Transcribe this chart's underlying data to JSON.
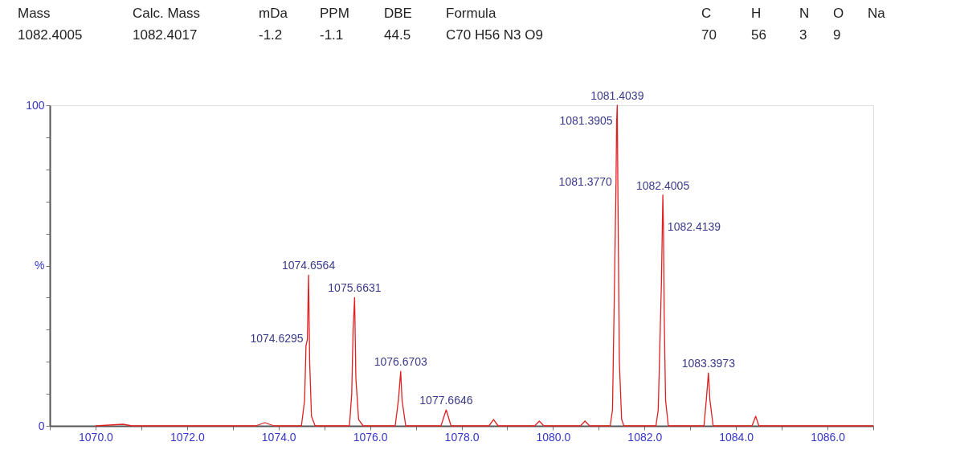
{
  "chart_data": {
    "type": "line",
    "x": [
      1070.0,
      1070.6,
      1070.8,
      1073.5,
      1073.7,
      1073.9,
      1074.5,
      1074.57,
      1074.6,
      1074.6295,
      1074.6564,
      1074.68,
      1074.72,
      1074.8,
      1075.55,
      1075.6,
      1075.63,
      1075.6631,
      1075.69,
      1075.75,
      1075.85,
      1076.55,
      1076.62,
      1076.6703,
      1076.7,
      1076.78,
      1077.55,
      1077.6646,
      1077.77,
      1078.6,
      1078.7,
      1078.8,
      1079.6,
      1079.7,
      1079.8,
      1080.6,
      1080.7,
      1080.8,
      1081.25,
      1081.3,
      1081.35,
      1081.377,
      1081.3905,
      1081.4039,
      1081.42,
      1081.45,
      1081.5,
      1081.55,
      1082.25,
      1082.3,
      1082.37,
      1082.4005,
      1082.4139,
      1082.43,
      1082.46,
      1082.52,
      1083.3,
      1083.35,
      1083.3973,
      1083.43,
      1083.5,
      1084.35,
      1084.43,
      1084.5,
      1087.0
    ],
    "series": [
      {
        "color": "#e02020",
        "values": [
          0,
          0.5,
          0,
          0,
          1,
          0,
          0,
          8,
          25,
          27,
          47,
          20,
          3,
          0,
          0,
          10,
          30,
          40,
          15,
          2,
          0,
          0,
          8,
          17,
          8,
          0,
          0,
          5,
          0,
          0,
          2,
          0,
          0,
          1.5,
          0,
          0,
          1.5,
          0,
          0,
          5,
          50,
          76,
          95,
          100,
          70,
          20,
          2,
          0,
          0,
          5,
          45,
          72,
          62,
          35,
          8,
          0,
          0,
          8,
          16.5,
          8,
          0,
          0,
          3,
          0,
          0
        ]
      }
    ],
    "xlim": [
      1069,
      1087
    ],
    "xticks": [
      {
        "value": 1069,
        "label": null
      },
      {
        "value": 1070,
        "label": "1070.0"
      },
      {
        "value": 1071,
        "label": null
      },
      {
        "value": 1072,
        "label": "1072.0"
      },
      {
        "value": 1073,
        "label": null
      },
      {
        "value": 1074,
        "label": "1074.0"
      },
      {
        "value": 1075,
        "label": null
      },
      {
        "value": 1076,
        "label": "1076.0"
      },
      {
        "value": 1077,
        "label": null
      },
      {
        "value": 1078,
        "label": "1078.0"
      },
      {
        "value": 1079,
        "label": null
      },
      {
        "value": 1080,
        "label": "1080.0"
      },
      {
        "value": 1081,
        "label": null
      },
      {
        "value": 1082,
        "label": "1082.0"
      },
      {
        "value": 1083,
        "label": null
      },
      {
        "value": 1084,
        "label": "1084.0"
      },
      {
        "value": 1085,
        "label": null
      },
      {
        "value": 1086,
        "label": "1086.0"
      },
      {
        "value": 1087,
        "label": null
      }
    ],
    "ylim": [
      0,
      100
    ],
    "yticks": [
      0,
      {
        "value": 10,
        "label": null
      },
      {
        "value": 20,
        "label": null
      },
      {
        "value": 30,
        "label": null
      },
      {
        "value": 40,
        "label": null
      },
      {
        "value": 50,
        "label": "%"
      },
      {
        "value": 60,
        "label": null
      },
      {
        "value": 70,
        "label": null
      },
      {
        "value": 80,
        "label": null
      },
      {
        "value": 90,
        "label": null
      },
      100
    ],
    "annotations": [
      "Mass",
      "Calc. Mass",
      "mDa",
      "PPM",
      "DBE",
      "Formula",
      "C",
      "H",
      "N",
      "O",
      "Na",
      "1082.4005",
      "1082.4017",
      "-1.2",
      "-1.1",
      "44.5",
      "C70  H56  N3  O9",
      "70",
      "56",
      "3",
      "9",
      {
        "text": "1074.6564",
        "x": 1074.6564,
        "y": 47
      },
      {
        "text": "1074.6295",
        "x": 1074.6295,
        "y": 27
      },
      {
        "text": "1075.6631",
        "x": 1075.6631,
        "y": 40
      },
      {
        "text": "1076.6703",
        "x": 1076.6703,
        "y": 17
      },
      {
        "text": "1077.6646",
        "x": 1077.6646,
        "y": 5
      },
      {
        "text": "1081.4039",
        "x": 1081.4039,
        "y": 100
      },
      {
        "text": "1081.3905",
        "x": 1081.3905,
        "y": 95
      },
      {
        "text": "1081.3770",
        "x": 1081.377,
        "y": 76
      },
      {
        "text": "1082.4005",
        "x": 1082.4005,
        "y": 72
      },
      {
        "text": "1082.4139",
        "x": 1082.4139,
        "y": 62
      },
      {
        "text": "1083.3973",
        "x": 1083.3973,
        "y": 16.5
      }
    ]
  }
}
